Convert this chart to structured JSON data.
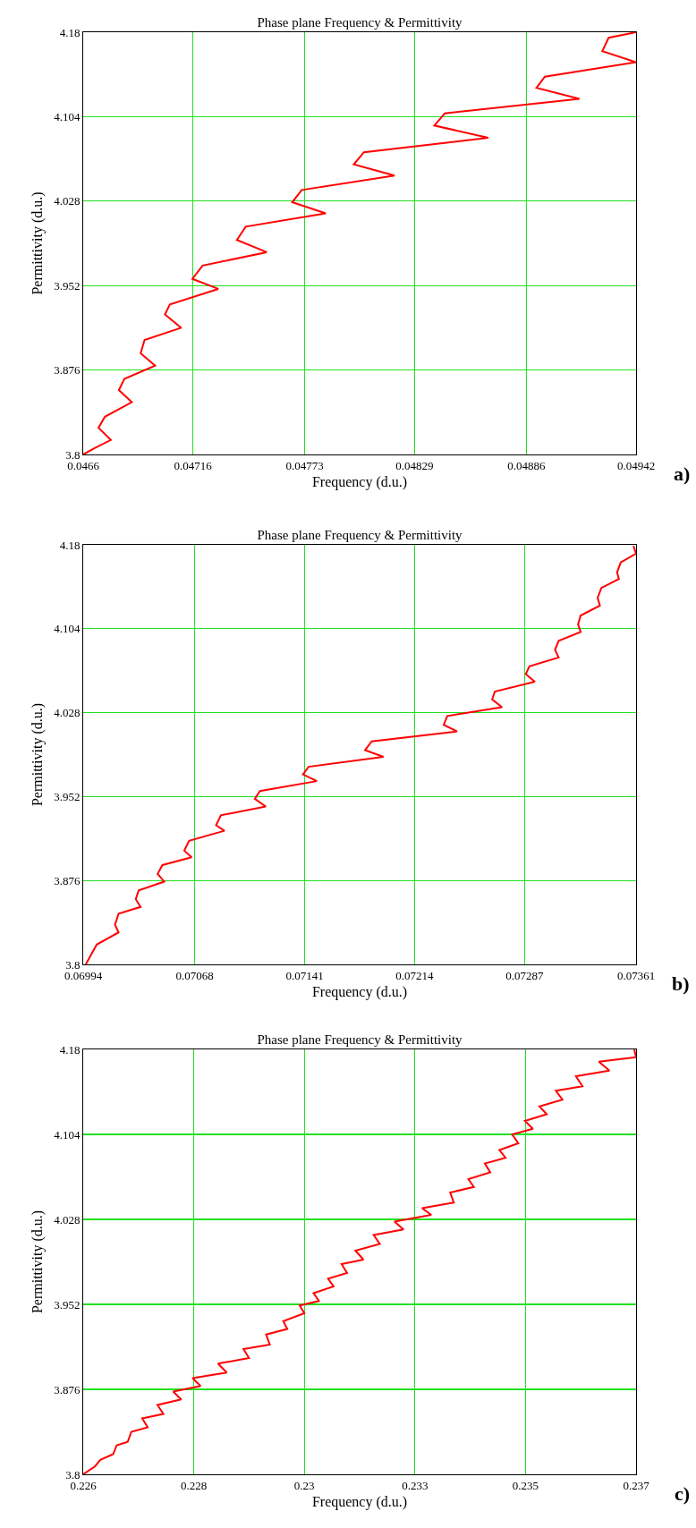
{
  "chart_data": [
    {
      "type": "line",
      "title": "Phase plane Frequency & Permittivity",
      "xlabel": "Frequency (d.u.)",
      "ylabel": "Permittivity (d.u.)",
      "annotations": [
        "a)"
      ],
      "grid": true,
      "xlim": [
        0.0466,
        0.04942
      ],
      "ylim": [
        3.8,
        4.18
      ],
      "xticks": [
        0.0466,
        0.04716,
        0.04773,
        0.04829,
        0.04886,
        0.04942
      ],
      "yticks": [
        3.8,
        3.876,
        3.952,
        4.028,
        4.104,
        4.18
      ],
      "x": [
        0.0466,
        0.046661,
        0.046741,
        0.046678,
        0.046711,
        0.046848,
        0.046782,
        0.04681,
        0.046967,
        0.046893,
        0.046913,
        0.0471,
        0.047017,
        0.047042,
        0.047289,
        0.047157,
        0.047209,
        0.047536,
        0.047384,
        0.047429,
        0.047837,
        0.047666,
        0.047715,
        0.048188,
        0.04798,
        0.048032,
        0.048666,
        0.048391,
        0.048445,
        0.049131,
        0.048912,
        0.048955,
        0.04942,
        0.049248,
        0.04928,
        0.04942
      ],
      "series": [
        {
          "color": "#ff0000",
          "values": [
            3.8,
            3.806,
            3.813,
            3.824,
            3.834,
            3.847,
            3.858,
            3.868,
            3.88,
            3.891,
            3.903,
            3.914,
            3.926,
            3.935,
            3.949,
            3.958,
            3.97,
            3.982,
            3.993,
            4.005,
            4.017,
            4.027,
            4.038,
            4.051,
            4.061,
            4.072,
            4.085,
            4.096,
            4.107,
            4.12,
            4.13,
            4.14,
            4.153,
            4.163,
            4.175,
            4.18
          ]
        }
      ]
    },
    {
      "type": "line",
      "title": "Phase plane Frequency & Permittivity",
      "xlabel": "Frequency (d.u.)",
      "ylabel": "Permittivity (d.u.)",
      "annotations": [
        "b)"
      ],
      "grid": true,
      "xlim": [
        0.06994,
        0.07361
      ],
      "ylim": [
        3.8,
        4.18
      ],
      "xticks": [
        0.06994,
        0.07068,
        0.07141,
        0.07214,
        0.07287,
        0.07361
      ],
      "yticks": [
        3.8,
        3.876,
        3.952,
        4.028,
        4.104,
        4.18
      ],
      "x": [
        0.069957,
        0.07003,
        0.070175,
        0.070151,
        0.070175,
        0.070321,
        0.070289,
        0.070308,
        0.070478,
        0.070434,
        0.070466,
        0.07066,
        0.070611,
        0.070643,
        0.070878,
        0.070822,
        0.070854,
        0.071152,
        0.071079,
        0.071113,
        0.071491,
        0.071399,
        0.071436,
        0.071933,
        0.071811,
        0.071855,
        0.072422,
        0.072333,
        0.072357,
        0.07272,
        0.072655,
        0.072672,
        0.072938,
        0.072878,
        0.072902,
        0.073096,
        0.073072,
        0.073096,
        0.073242,
        0.073225,
        0.073242,
        0.07337,
        0.073355,
        0.07338,
        0.073496,
        0.073484,
        0.073508,
        0.07361,
        0.073593
      ],
      "series": [
        {
          "color": "#ff0000",
          "values": [
            3.8,
            3.818,
            3.829,
            3.836,
            3.846,
            3.852,
            3.859,
            3.867,
            3.875,
            3.882,
            3.89,
            3.897,
            3.903,
            3.912,
            3.921,
            3.926,
            3.935,
            3.943,
            3.95,
            3.957,
            3.966,
            3.972,
            3.979,
            3.988,
            3.994,
            4.002,
            4.011,
            4.017,
            4.025,
            4.033,
            4.04,
            4.047,
            4.056,
            4.063,
            4.07,
            4.078,
            4.085,
            4.093,
            4.101,
            4.108,
            4.116,
            4.125,
            4.132,
            4.141,
            4.149,
            4.155,
            4.164,
            4.172,
            4.179
          ]
        }
      ]
    },
    {
      "type": "line",
      "title": "Phase plane Frequency & Permittivity",
      "xlabel": "Frequency (d.u.)",
      "ylabel": "Permittivity (d.u.)",
      "annotations": [
        "c)"
      ],
      "grid": true,
      "xlim": [
        0.226,
        0.237
      ],
      "ylim": [
        3.8,
        4.18
      ],
      "xticks": [
        0.226,
        {
          "value": 0.2282,
          "label": "0.228"
        },
        {
          "value": 0.2304,
          "label": "0.23"
        },
        {
          "value": 0.2326,
          "label": "0.233"
        },
        {
          "value": 0.2348,
          "label": "0.235"
        },
        0.237
      ],
      "yticks": [
        3.8,
        3.876,
        3.952,
        4.028,
        4.104,
        4.18
      ],
      "x": [
        0.226,
        0.226232,
        0.226341,
        0.226595,
        0.226667,
        0.226885,
        0.226957,
        0.227283,
        0.227175,
        0.227595,
        0.227479,
        0.22795,
        0.227791,
        0.228335,
        0.228175,
        0.228857,
        0.228683,
        0.229299,
        0.22919,
        0.229713,
        0.22964,
        0.230061,
        0.229981,
        0.230401,
        0.230307,
        0.230691,
        0.230583,
        0.230981,
        0.230873,
        0.23125,
        0.231141,
        0.231576,
        0.231416,
        0.231902,
        0.231779,
        0.232374,
        0.232192,
        0.232925,
        0.232743,
        0.233374,
        0.233302,
        0.233773,
        0.233664,
        0.234099,
        0.233991,
        0.234404,
        0.234281,
        0.234658,
        0.234534,
        0.234948,
        0.234788,
        0.235223,
        0.235078,
        0.235535,
        0.235405,
        0.235934,
        0.235803,
        0.23647,
        0.23626,
        0.237,
        0.236964
      ],
      "series": [
        {
          "color": "#ff0000",
          "values": [
            3.8,
            3.807,
            3.813,
            3.818,
            3.826,
            3.829,
            3.838,
            3.842,
            3.85,
            3.854,
            3.862,
            3.867,
            3.874,
            3.879,
            3.886,
            3.891,
            3.899,
            3.904,
            3.912,
            3.916,
            3.925,
            3.93,
            3.937,
            3.944,
            3.951,
            3.955,
            3.962,
            3.968,
            3.975,
            3.98,
            3.988,
            3.992,
            4.0,
            4.006,
            4.014,
            4.019,
            4.026,
            4.032,
            4.038,
            4.043,
            4.052,
            4.057,
            4.064,
            4.07,
            4.078,
            4.083,
            4.09,
            4.096,
            4.104,
            4.109,
            4.116,
            4.122,
            4.129,
            4.135,
            4.143,
            4.147,
            4.156,
            4.161,
            4.169,
            4.173,
            4.18
          ]
        }
      ]
    }
  ]
}
